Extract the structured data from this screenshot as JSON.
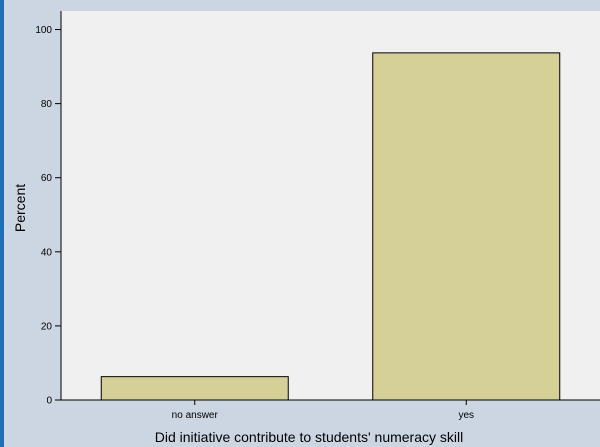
{
  "chart_data": {
    "type": "bar",
    "categories": [
      "no answer",
      "yes"
    ],
    "values": [
      6.3,
      93.7
    ],
    "xlabel": "Did initiative contribute to students' numeracy skill",
    "ylabel": "Percent",
    "ylim": [
      0,
      105
    ],
    "yticks": [
      0,
      20,
      40,
      60,
      80,
      100
    ],
    "grid": false,
    "legend": "none",
    "colors": {
      "bar_fill": "#d5cf98",
      "bar_stroke": "#000000",
      "plot_bg": "#f0f0f0",
      "page_bg": "#ccd6e3",
      "border_accent": "#1f6fb6"
    }
  }
}
